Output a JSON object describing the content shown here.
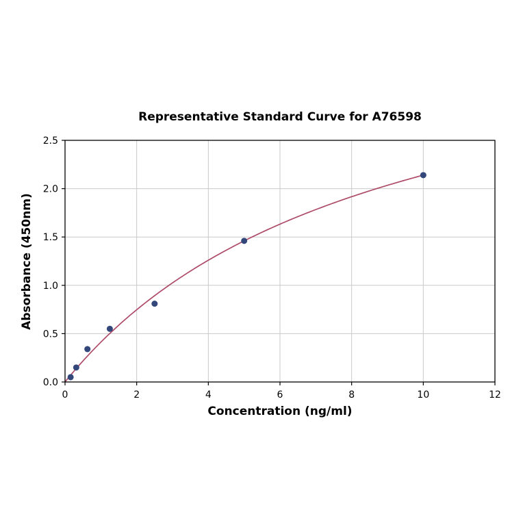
{
  "figure": {
    "background": "#ffffff"
  },
  "chart_data": {
    "type": "scatter",
    "title": "Representative Standard Curve for A76598",
    "xlabel": "Concentration (ng/ml)",
    "ylabel": "Absorbance (450nm)",
    "xlim": [
      0,
      12
    ],
    "ylim": [
      0,
      2.5
    ],
    "x_ticks": [
      0,
      2,
      4,
      6,
      8,
      10,
      12
    ],
    "x_tick_labels": [
      "0",
      "2",
      "4",
      "6",
      "8",
      "10",
      "12"
    ],
    "y_ticks": [
      0.0,
      0.5,
      1.0,
      1.5,
      2.0,
      2.5
    ],
    "y_tick_labels": [
      "0.0",
      "0.5",
      "1.0",
      "1.5",
      "2.0",
      "2.5"
    ],
    "grid": true,
    "legend": "none",
    "points": {
      "x": [
        0.156,
        0.3125,
        0.625,
        1.25,
        2.5,
        5,
        10
      ],
      "y": [
        0.05,
        0.15,
        0.34,
        0.55,
        0.81,
        1.46,
        2.14
      ]
    },
    "fit_curve": {
      "model": "saturation (y = vmax*x/(k+x))",
      "vmax": 4.006,
      "k": 8.72,
      "x_range": [
        0,
        10
      ]
    },
    "colors": {
      "points": "#33477a",
      "curve": "#ad4a68",
      "grid": "#c9c9c9",
      "axis": "#000000",
      "background": "#ffffff"
    }
  }
}
